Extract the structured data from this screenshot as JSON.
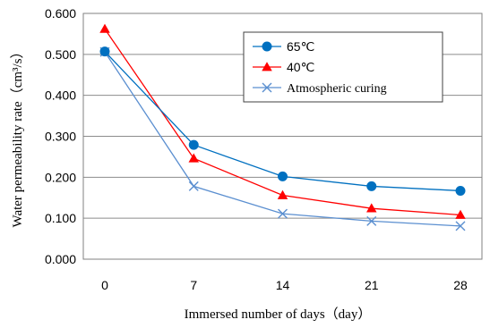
{
  "chart_data": {
    "type": "line",
    "title": "",
    "xlabel": "Immersed number of days（day）",
    "ylabel": "Water permeability rate（cm³/s）",
    "x": [
      0,
      7,
      14,
      21,
      28
    ],
    "x_tick_labels": [
      "0",
      "7",
      "14",
      "21",
      "28"
    ],
    "ylim": [
      0.0,
      0.6
    ],
    "y_ticks": [
      0.0,
      0.1,
      0.2,
      0.3,
      0.4,
      0.5,
      0.6
    ],
    "y_tick_labels": [
      "0.000",
      "0.100",
      "0.200",
      "0.300",
      "0.400",
      "0.500",
      "0.600"
    ],
    "grid": "horizontal",
    "legend_position": "top-right",
    "series": [
      {
        "name": "65℃",
        "marker": "circle",
        "color": "#0070C0",
        "values": [
          0.507,
          0.279,
          0.202,
          0.178,
          0.167
        ]
      },
      {
        "name": "40℃",
        "marker": "triangle",
        "color": "#FF0000",
        "values": [
          0.562,
          0.246,
          0.156,
          0.124,
          0.108
        ]
      },
      {
        "name": "Atmospheric curing",
        "marker": "x",
        "color": "#5B8FD0",
        "values": [
          0.506,
          0.178,
          0.111,
          0.093,
          0.081
        ]
      }
    ]
  }
}
